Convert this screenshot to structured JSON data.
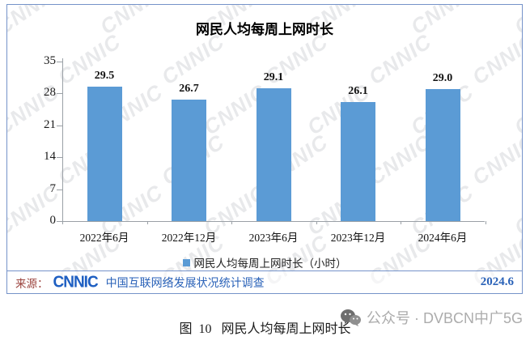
{
  "chart_data": {
    "type": "bar",
    "title": "网民人均每周上网时长",
    "categories": [
      "2022年6月",
      "2022年12月",
      "2023年6月",
      "2023年12月",
      "2024年6月"
    ],
    "values": [
      29.5,
      26.7,
      29.1,
      26.1,
      29.0
    ],
    "value_labels": [
      "29.5",
      "26.7",
      "29.1",
      "26.1",
      "29.0"
    ],
    "series_name": "网民人均每周上网时长（小时）",
    "xlabel": "",
    "ylabel": "",
    "ylim": [
      0,
      35
    ],
    "yticks": [
      0,
      7,
      14,
      21,
      28,
      35
    ],
    "grid": false,
    "legend_position": "bottom"
  },
  "legend": {
    "label": "网民人均每周上网时长（小时）"
  },
  "source": {
    "prefix": "来源：",
    "logo": "CNNIC",
    "text": "中国互联网络发展状况统计调查",
    "date": "2024.6"
  },
  "caption": "图  10   网民人均每周上网时长",
  "watermark": {
    "brand": "CNNIC",
    "wechat": "公众号 · DVBCN中广5G"
  },
  "colors": {
    "bar": "#5B9BD5",
    "box_border": "#7593C9",
    "axis": "#9aa0a6",
    "source_red": "#9A423C",
    "source_blue": "#2A62B8",
    "watermark_gray": "#B2B6BE"
  }
}
